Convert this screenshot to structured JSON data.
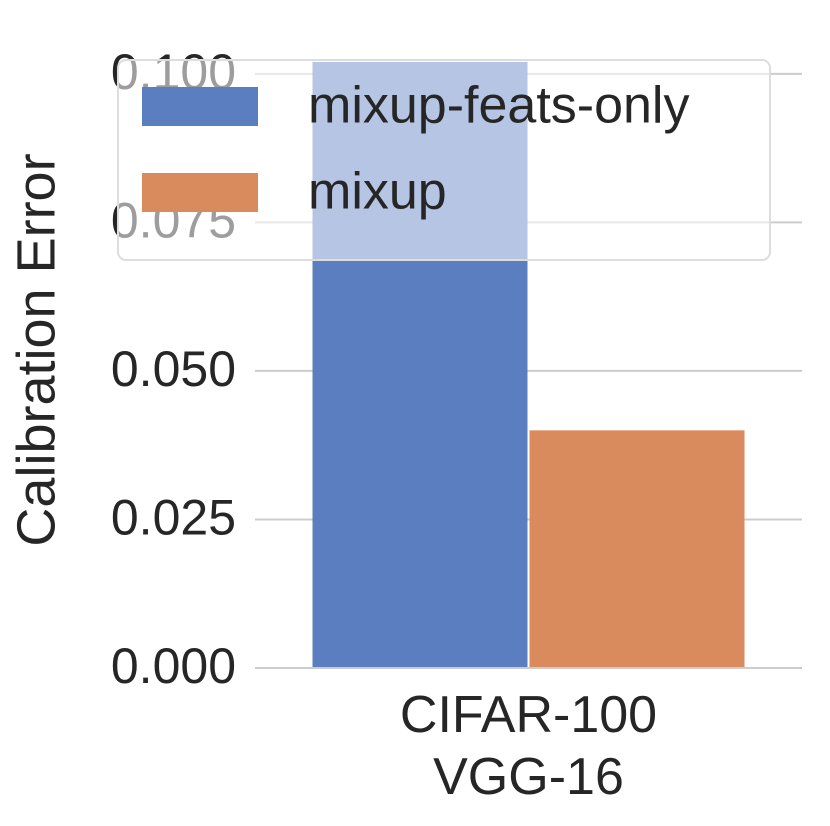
{
  "chart_data": {
    "type": "bar",
    "y_label": "Calibration Error",
    "categories": [
      "CIFAR-100\nVGG-16"
    ],
    "series": [
      {
        "name": "mixup-feats-only",
        "color": "#5b7ec1",
        "values": [
          0.102
        ]
      },
      {
        "name": "mixup",
        "color": "#d98b5e",
        "values": [
          0.04
        ]
      }
    ],
    "ylim": [
      0,
      0.103
    ],
    "yticks": [
      {
        "value": 0,
        "label": "0.000"
      },
      {
        "value": 0.025,
        "label": "0.025"
      },
      {
        "value": 0.05,
        "label": "0.050"
      },
      {
        "value": 0.075,
        "label": "0.075"
      },
      {
        "value": 0.1,
        "label": "0.100"
      }
    ],
    "grid": true,
    "legend": "upper right"
  }
}
